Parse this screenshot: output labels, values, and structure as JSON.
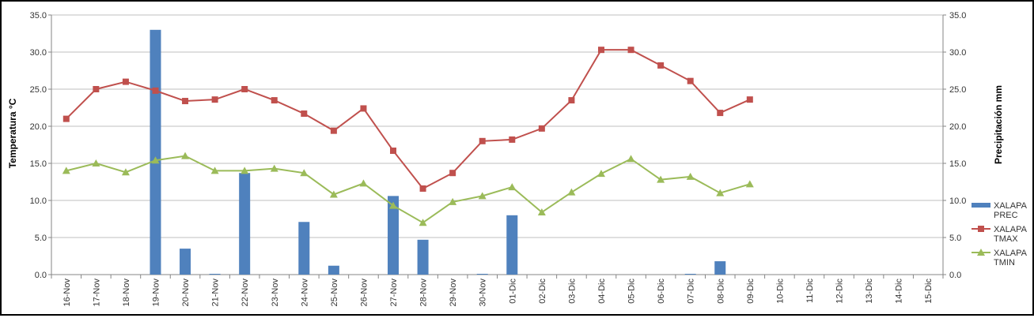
{
  "chart_data": {
    "type": "bar+line",
    "categories": [
      "16-Nov",
      "17-Nov",
      "18-Nov",
      "19-Nov",
      "20-Nov",
      "21-Nov",
      "22-Nov",
      "23-Nov",
      "24-Nov",
      "25-Nov",
      "26-Nov",
      "27-Nov",
      "28-Nov",
      "29-Nov",
      "30-Nov",
      "01-Dic",
      "02-Dic",
      "03-Dic",
      "04-Dic",
      "05-Dic",
      "06-Dic",
      "07-Dic",
      "08-Dic",
      "09-Dic",
      "10-Dic",
      "11-Dic",
      "12-Dic",
      "13-Dic",
      "14-Dic",
      "15-Dic"
    ],
    "ylabel_left": "Temperatura °C",
    "ylabel_right": "Precipitación mm",
    "ylim_left": [
      0,
      35
    ],
    "ylim_right": [
      0,
      35
    ],
    "yticks": [
      "0.0",
      "5.0",
      "10.0",
      "15.0",
      "20.0",
      "25.0",
      "30.0",
      "35.0"
    ],
    "grid": true,
    "legend_position": "right",
    "series": [
      {
        "name": "XALAPA PREC",
        "legend_lines": [
          "XALAPA",
          "PREC"
        ],
        "kind": "bar",
        "axis": "right",
        "color": "#4f81bd",
        "values": [
          0,
          0,
          0,
          33.0,
          3.5,
          0.1,
          13.7,
          0,
          7.1,
          1.2,
          0,
          10.6,
          4.7,
          0,
          0.1,
          8.0,
          0,
          0,
          0,
          0,
          0,
          0.1,
          1.8,
          0,
          0,
          0,
          0,
          0,
          0,
          0
        ]
      },
      {
        "name": "XALAPA TMAX",
        "legend_lines": [
          "XALAPA",
          "TMAX"
        ],
        "kind": "line",
        "axis": "left",
        "color": "#c0504d",
        "marker": "square",
        "values": [
          21.0,
          25.0,
          26.0,
          24.8,
          23.4,
          23.6,
          25.0,
          23.5,
          21.7,
          19.4,
          22.4,
          16.7,
          11.6,
          13.7,
          18.0,
          18.2,
          19.7,
          23.5,
          30.3,
          30.3,
          28.2,
          26.1,
          21.8,
          23.6,
          null,
          null,
          null,
          null,
          null,
          null
        ]
      },
      {
        "name": "XALAPA TMIN",
        "legend_lines": [
          "XALAPA",
          "TMIN"
        ],
        "kind": "line",
        "axis": "left",
        "color": "#9bbb59",
        "marker": "triangle",
        "values": [
          14.0,
          15.0,
          13.8,
          15.4,
          16.0,
          14.0,
          14.0,
          14.3,
          13.7,
          10.8,
          12.3,
          9.3,
          7.0,
          9.8,
          10.6,
          11.8,
          8.4,
          11.1,
          13.6,
          15.6,
          12.8,
          13.2,
          11.0,
          12.2,
          null,
          null,
          null,
          null,
          null,
          null
        ]
      }
    ]
  }
}
